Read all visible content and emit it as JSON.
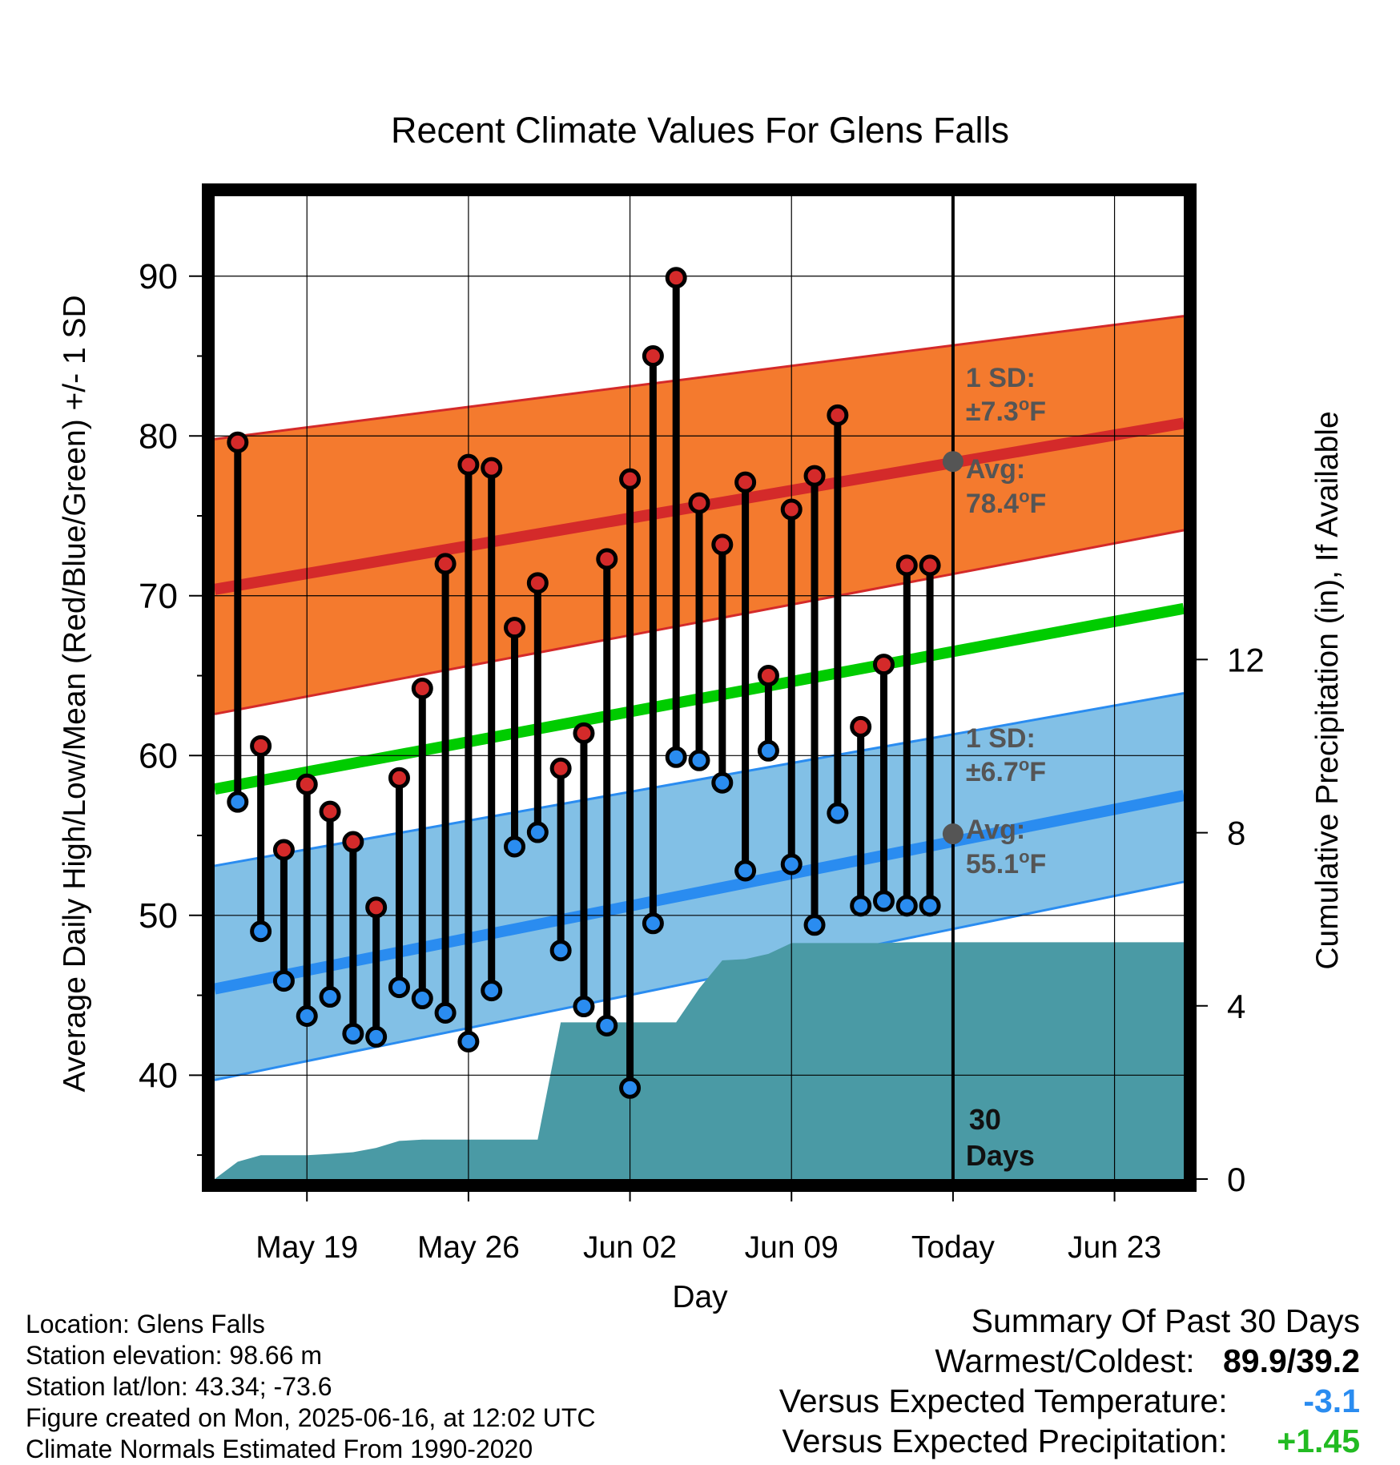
{
  "chart_data": {
    "type": "line",
    "title": "Recent Climate Values For Glens Falls",
    "xlabel": "Day",
    "ylabel": "Average Daily High/Low/Mean (Red/Blue/Green) +/- 1 SD",
    "y2label": "Cumulative Precipitation (in), If Available",
    "ylim": [
      33.5,
      95
    ],
    "y2lim": [
      0,
      22.7
    ],
    "xlim": [
      "2025-05-15",
      "2025-06-26"
    ],
    "grid": true,
    "x_ticks": [
      {
        "date": "2025-05-19",
        "label": "May 19"
      },
      {
        "date": "2025-05-26",
        "label": "May 26"
      },
      {
        "date": "2025-06-02",
        "label": "Jun 02"
      },
      {
        "date": "2025-06-09",
        "label": "Jun 09"
      },
      {
        "date": "2025-06-16",
        "label": "Today"
      },
      {
        "date": "2025-06-23",
        "label": "Jun 23"
      }
    ],
    "y_ticks": [
      40,
      50,
      60,
      70,
      80,
      90
    ],
    "y2_ticks": [
      0,
      4,
      8,
      12
    ],
    "series": [
      {
        "name": "High",
        "color": "#d42a2a",
        "x": [
          "2025-05-16",
          "2025-05-17",
          "2025-05-18",
          "2025-05-19",
          "2025-05-20",
          "2025-05-21",
          "2025-05-22",
          "2025-05-23",
          "2025-05-24",
          "2025-05-25",
          "2025-05-26",
          "2025-05-27",
          "2025-05-28",
          "2025-05-29",
          "2025-05-30",
          "2025-05-31",
          "2025-06-01",
          "2025-06-02",
          "2025-06-03",
          "2025-06-04",
          "2025-06-05",
          "2025-06-06",
          "2025-06-07",
          "2025-06-08",
          "2025-06-09",
          "2025-06-10",
          "2025-06-11",
          "2025-06-12",
          "2025-06-13",
          "2025-06-14",
          "2025-06-15"
        ],
        "values": [
          79.6,
          60.6,
          54.1,
          58.2,
          56.5,
          54.6,
          50.5,
          58.6,
          64.2,
          72.0,
          78.2,
          78.0,
          68.0,
          70.8,
          59.2,
          61.4,
          72.3,
          77.3,
          85.0,
          89.9,
          75.8,
          73.2,
          77.1,
          65.0,
          75.4,
          77.5,
          81.3,
          61.8,
          65.7,
          71.9,
          71.9
        ]
      },
      {
        "name": "Low",
        "color": "#2a8cf0",
        "x": [
          "2025-05-16",
          "2025-05-17",
          "2025-05-18",
          "2025-05-19",
          "2025-05-20",
          "2025-05-21",
          "2025-05-22",
          "2025-05-23",
          "2025-05-24",
          "2025-05-25",
          "2025-05-26",
          "2025-05-27",
          "2025-05-28",
          "2025-05-29",
          "2025-05-30",
          "2025-05-31",
          "2025-06-01",
          "2025-06-02",
          "2025-06-03",
          "2025-06-04",
          "2025-06-05",
          "2025-06-06",
          "2025-06-07",
          "2025-06-08",
          "2025-06-09",
          "2025-06-10",
          "2025-06-11",
          "2025-06-12",
          "2025-06-13",
          "2025-06-14",
          "2025-06-15"
        ],
        "values": [
          57.1,
          49.0,
          45.9,
          43.7,
          44.9,
          42.6,
          42.4,
          45.5,
          44.8,
          43.9,
          42.1,
          45.3,
          54.3,
          55.2,
          47.8,
          44.3,
          43.1,
          39.2,
          49.5,
          59.9,
          59.7,
          58.3,
          52.8,
          60.3,
          53.2,
          49.4,
          56.4,
          50.6,
          50.9,
          50.6,
          50.6
        ]
      }
    ],
    "normals": {
      "high_avg": {
        "x": [
          "2025-05-15",
          "2025-06-26"
        ],
        "values": [
          70.4,
          80.8
        ],
        "color": "#d42a2a"
      },
      "high_sd_upper": {
        "x": [
          "2025-05-15",
          "2025-06-26"
        ],
        "values": [
          79.8,
          87.5
        ]
      },
      "high_sd_lower": {
        "x": [
          "2025-05-15",
          "2025-06-26"
        ],
        "values": [
          62.6,
          74.1
        ]
      },
      "high_band_color": "#f47a2e",
      "mean_avg": {
        "x": [
          "2025-05-15",
          "2025-06-26"
        ],
        "values": [
          57.9,
          69.2
        ],
        "color": "#00cc00"
      },
      "low_avg": {
        "x": [
          "2025-05-15",
          "2025-06-26"
        ],
        "values": [
          45.4,
          57.5
        ],
        "color": "#2a8cf0"
      },
      "low_sd_upper": {
        "x": [
          "2025-05-15",
          "2025-06-26"
        ],
        "values": [
          53.1,
          63.9
        ]
      },
      "low_sd_lower": {
        "x": [
          "2025-05-15",
          "2025-06-26"
        ],
        "values": [
          39.7,
          52.1
        ]
      },
      "low_band_color": "#82c0e6"
    },
    "precipitation": {
      "color": "#4a9aa5",
      "x": [
        "2025-05-15",
        "2025-05-16",
        "2025-05-17",
        "2025-05-18",
        "2025-05-19",
        "2025-05-20",
        "2025-05-21",
        "2025-05-22",
        "2025-05-23",
        "2025-05-24",
        "2025-05-25",
        "2025-05-26",
        "2025-05-27",
        "2025-05-28",
        "2025-05-29",
        "2025-05-30",
        "2025-05-31",
        "2025-06-01",
        "2025-06-02",
        "2025-06-03",
        "2025-06-04",
        "2025-06-05",
        "2025-06-06",
        "2025-06-07",
        "2025-06-08",
        "2025-06-09",
        "2025-06-10",
        "2025-06-11",
        "2025-06-12",
        "2025-06-13",
        "2025-06-14",
        "2025-06-15",
        "2025-06-16",
        "2025-06-26"
      ],
      "values": [
        0.0,
        0.4,
        0.55,
        0.55,
        0.55,
        0.58,
        0.62,
        0.72,
        0.88,
        0.91,
        0.91,
        0.91,
        0.91,
        0.91,
        0.91,
        3.62,
        3.62,
        3.62,
        3.62,
        3.62,
        3.62,
        4.4,
        5.05,
        5.08,
        5.2,
        5.45,
        5.45,
        5.45,
        5.45,
        5.45,
        5.47,
        5.47,
        5.47,
        5.47
      ]
    },
    "annotations": {
      "today_date": "2025-06-16",
      "high_sd_text": "1 SD:",
      "high_sd_value": "±7.3",
      "high_avg_text": "Avg:",
      "high_avg_value": "78.4",
      "high_avg_num": 78.4,
      "low_sd_text": "1 SD:",
      "low_sd_value": "±6.7",
      "low_avg_text": "Avg:",
      "low_avg_value": "55.1",
      "low_avg_num": 55.1,
      "degree_unit": "o",
      "unit_letter": "F",
      "days_count": "30",
      "days_word": "Days"
    }
  },
  "info": {
    "location": "Location: Glens Falls",
    "elevation": "Station elevation: 98.66 m",
    "latlon": "Station lat/lon: 43.34; -73.6",
    "created": "Figure created on Mon, 2025-06-16, at 12:02 UTC",
    "normals": "Climate Normals Estimated From 1990-2020"
  },
  "summary": {
    "title": "Summary Of Past 30 Days",
    "warmest_label": "Warmest/Coldest:",
    "warmest_value": "89.9/39.2",
    "temp_label": "Versus Expected Temperature:",
    "temp_value": "-3.1",
    "temp_color": "#2a8cf0",
    "precip_label": "Versus Expected Precipitation:",
    "precip_value": "+1.45",
    "precip_color": "#22bb22"
  }
}
